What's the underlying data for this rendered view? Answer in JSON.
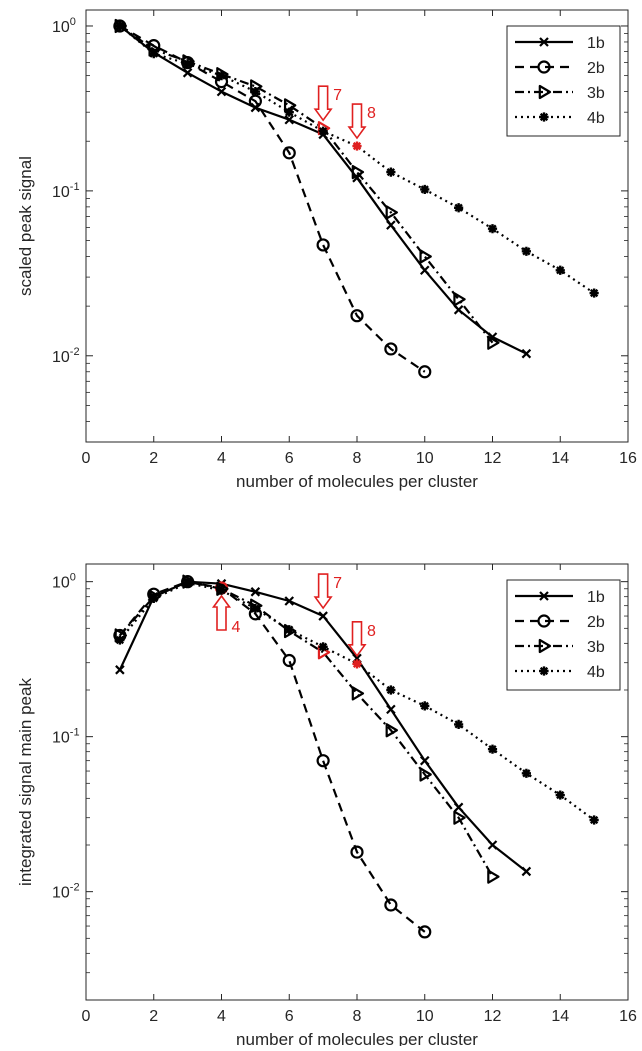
{
  "colors": {
    "axis": "#262626",
    "line": "#000000",
    "highlight": "#e02020"
  },
  "chart_data": [
    {
      "type": "line",
      "xlabel": "number of molecules per cluster",
      "ylabel": "scaled peak signal",
      "xlim": [
        0,
        16
      ],
      "ylim": [
        0.003,
        1.25
      ],
      "yscale": "log",
      "grid": false,
      "legend_position": "top-right",
      "xticks": [
        0,
        2,
        4,
        6,
        8,
        10,
        12,
        14,
        16
      ],
      "xtick_labels": [
        "0",
        "2",
        "4",
        "6",
        "8",
        "10",
        "12",
        "14",
        "16"
      ],
      "yticks": [
        {
          "value": 1,
          "exp": "0"
        },
        {
          "value": 0.1,
          "exp": "-1"
        },
        {
          "value": 0.01,
          "exp": "-2"
        }
      ],
      "series": [
        {
          "name": "1b",
          "style": "solid",
          "marker": "x",
          "x": [
            1,
            2,
            3,
            4,
            5,
            6,
            7,
            8,
            9,
            10,
            11,
            12,
            13
          ],
          "y": [
            1.0,
            0.69,
            0.52,
            0.4,
            0.32,
            0.27,
            0.22,
            0.12,
            0.062,
            0.033,
            0.019,
            0.013,
            0.0103
          ]
        },
        {
          "name": "2b",
          "style": "dashed",
          "marker": "circle",
          "x": [
            1,
            2,
            3,
            4,
            5,
            6,
            7,
            8,
            9,
            10
          ],
          "y": [
            1.0,
            0.76,
            0.6,
            0.46,
            0.35,
            0.17,
            0.047,
            0.0175,
            0.011,
            0.008
          ]
        },
        {
          "name": "3b",
          "style": "dashdot",
          "marker": "triangle",
          "x": [
            1,
            2,
            3,
            4,
            5,
            6,
            7,
            8,
            9,
            10,
            11,
            12
          ],
          "y": [
            1.0,
            0.72,
            0.61,
            0.51,
            0.43,
            0.33,
            0.24,
            0.13,
            0.074,
            0.04,
            0.022,
            0.012
          ]
        },
        {
          "name": "4b",
          "style": "dotted",
          "marker": "star",
          "x": [
            1,
            2,
            3,
            4,
            5,
            6,
            7,
            8,
            9,
            10,
            11,
            12,
            13,
            14,
            15
          ],
          "y": [
            1.0,
            0.68,
            0.59,
            0.5,
            0.4,
            0.3,
            0.23,
            0.187,
            0.13,
            0.102,
            0.079,
            0.059,
            0.043,
            0.033,
            0.024
          ]
        }
      ],
      "highlights": [
        {
          "series": "3b",
          "x": 7,
          "y": 0.24
        },
        {
          "series": "4b",
          "x": 8,
          "y": 0.187
        }
      ],
      "annotations": [
        {
          "text": "7",
          "x": 7,
          "y": 0.24,
          "arrow": "down"
        },
        {
          "text": "8",
          "x": 8,
          "y": 0.187,
          "arrow": "down"
        }
      ]
    },
    {
      "type": "line",
      "xlabel": "number of molecules per cluster",
      "ylabel": "integrated signal main peak",
      "xlim": [
        0,
        16
      ],
      "ylim": [
        0.002,
        1.3
      ],
      "yscale": "log",
      "grid": false,
      "legend_position": "top-right",
      "xticks": [
        0,
        2,
        4,
        6,
        8,
        10,
        12,
        14,
        16
      ],
      "xtick_labels": [
        "0",
        "2",
        "4",
        "6",
        "8",
        "10",
        "12",
        "14",
        "16"
      ],
      "yticks": [
        {
          "value": 1,
          "exp": "0"
        },
        {
          "value": 0.1,
          "exp": "-1"
        },
        {
          "value": 0.01,
          "exp": "-2"
        }
      ],
      "series": [
        {
          "name": "1b",
          "style": "solid",
          "marker": "x",
          "x": [
            1,
            2,
            3,
            4,
            5,
            6,
            7,
            8,
            9,
            10,
            11,
            12,
            13
          ],
          "y": [
            0.27,
            0.8,
            1.0,
            0.97,
            0.86,
            0.75,
            0.6,
            0.32,
            0.15,
            0.07,
            0.035,
            0.02,
            0.0135
          ]
        },
        {
          "name": "2b",
          "style": "dashed",
          "marker": "circle",
          "x": [
            1,
            2,
            3,
            4,
            5,
            6,
            7,
            8,
            9,
            10
          ],
          "y": [
            0.45,
            0.83,
            1.0,
            0.91,
            0.62,
            0.31,
            0.07,
            0.018,
            0.0082,
            0.0055
          ]
        },
        {
          "name": "3b",
          "style": "dashdot",
          "marker": "triangle",
          "x": [
            1,
            2,
            3,
            4,
            5,
            6,
            7,
            8,
            9,
            10,
            11,
            12
          ],
          "y": [
            0.45,
            0.8,
            1.0,
            0.9,
            0.7,
            0.48,
            0.35,
            0.19,
            0.11,
            0.057,
            0.03,
            0.0125
          ]
        },
        {
          "name": "4b",
          "style": "dotted",
          "marker": "star",
          "x": [
            1,
            2,
            3,
            4,
            5,
            6,
            7,
            8,
            9,
            10,
            11,
            12,
            13,
            14,
            15
          ],
          "y": [
            0.42,
            0.78,
            0.98,
            0.88,
            0.67,
            0.49,
            0.38,
            0.295,
            0.2,
            0.158,
            0.12,
            0.083,
            0.058,
            0.042,
            0.029
          ]
        }
      ],
      "highlights": [
        {
          "series": "2b",
          "x": 4,
          "y": 0.91
        },
        {
          "series": "3b",
          "x": 7,
          "y": 0.35
        },
        {
          "series": "4b",
          "x": 8,
          "y": 0.295
        }
      ],
      "annotations": [
        {
          "text": "4",
          "x": 4,
          "y": 0.91,
          "arrow": "up"
        },
        {
          "text": "7",
          "x": 7,
          "y": 0.6,
          "arrow": "down"
        },
        {
          "text": "8",
          "x": 8,
          "y": 0.295,
          "arrow": "down"
        }
      ]
    }
  ]
}
